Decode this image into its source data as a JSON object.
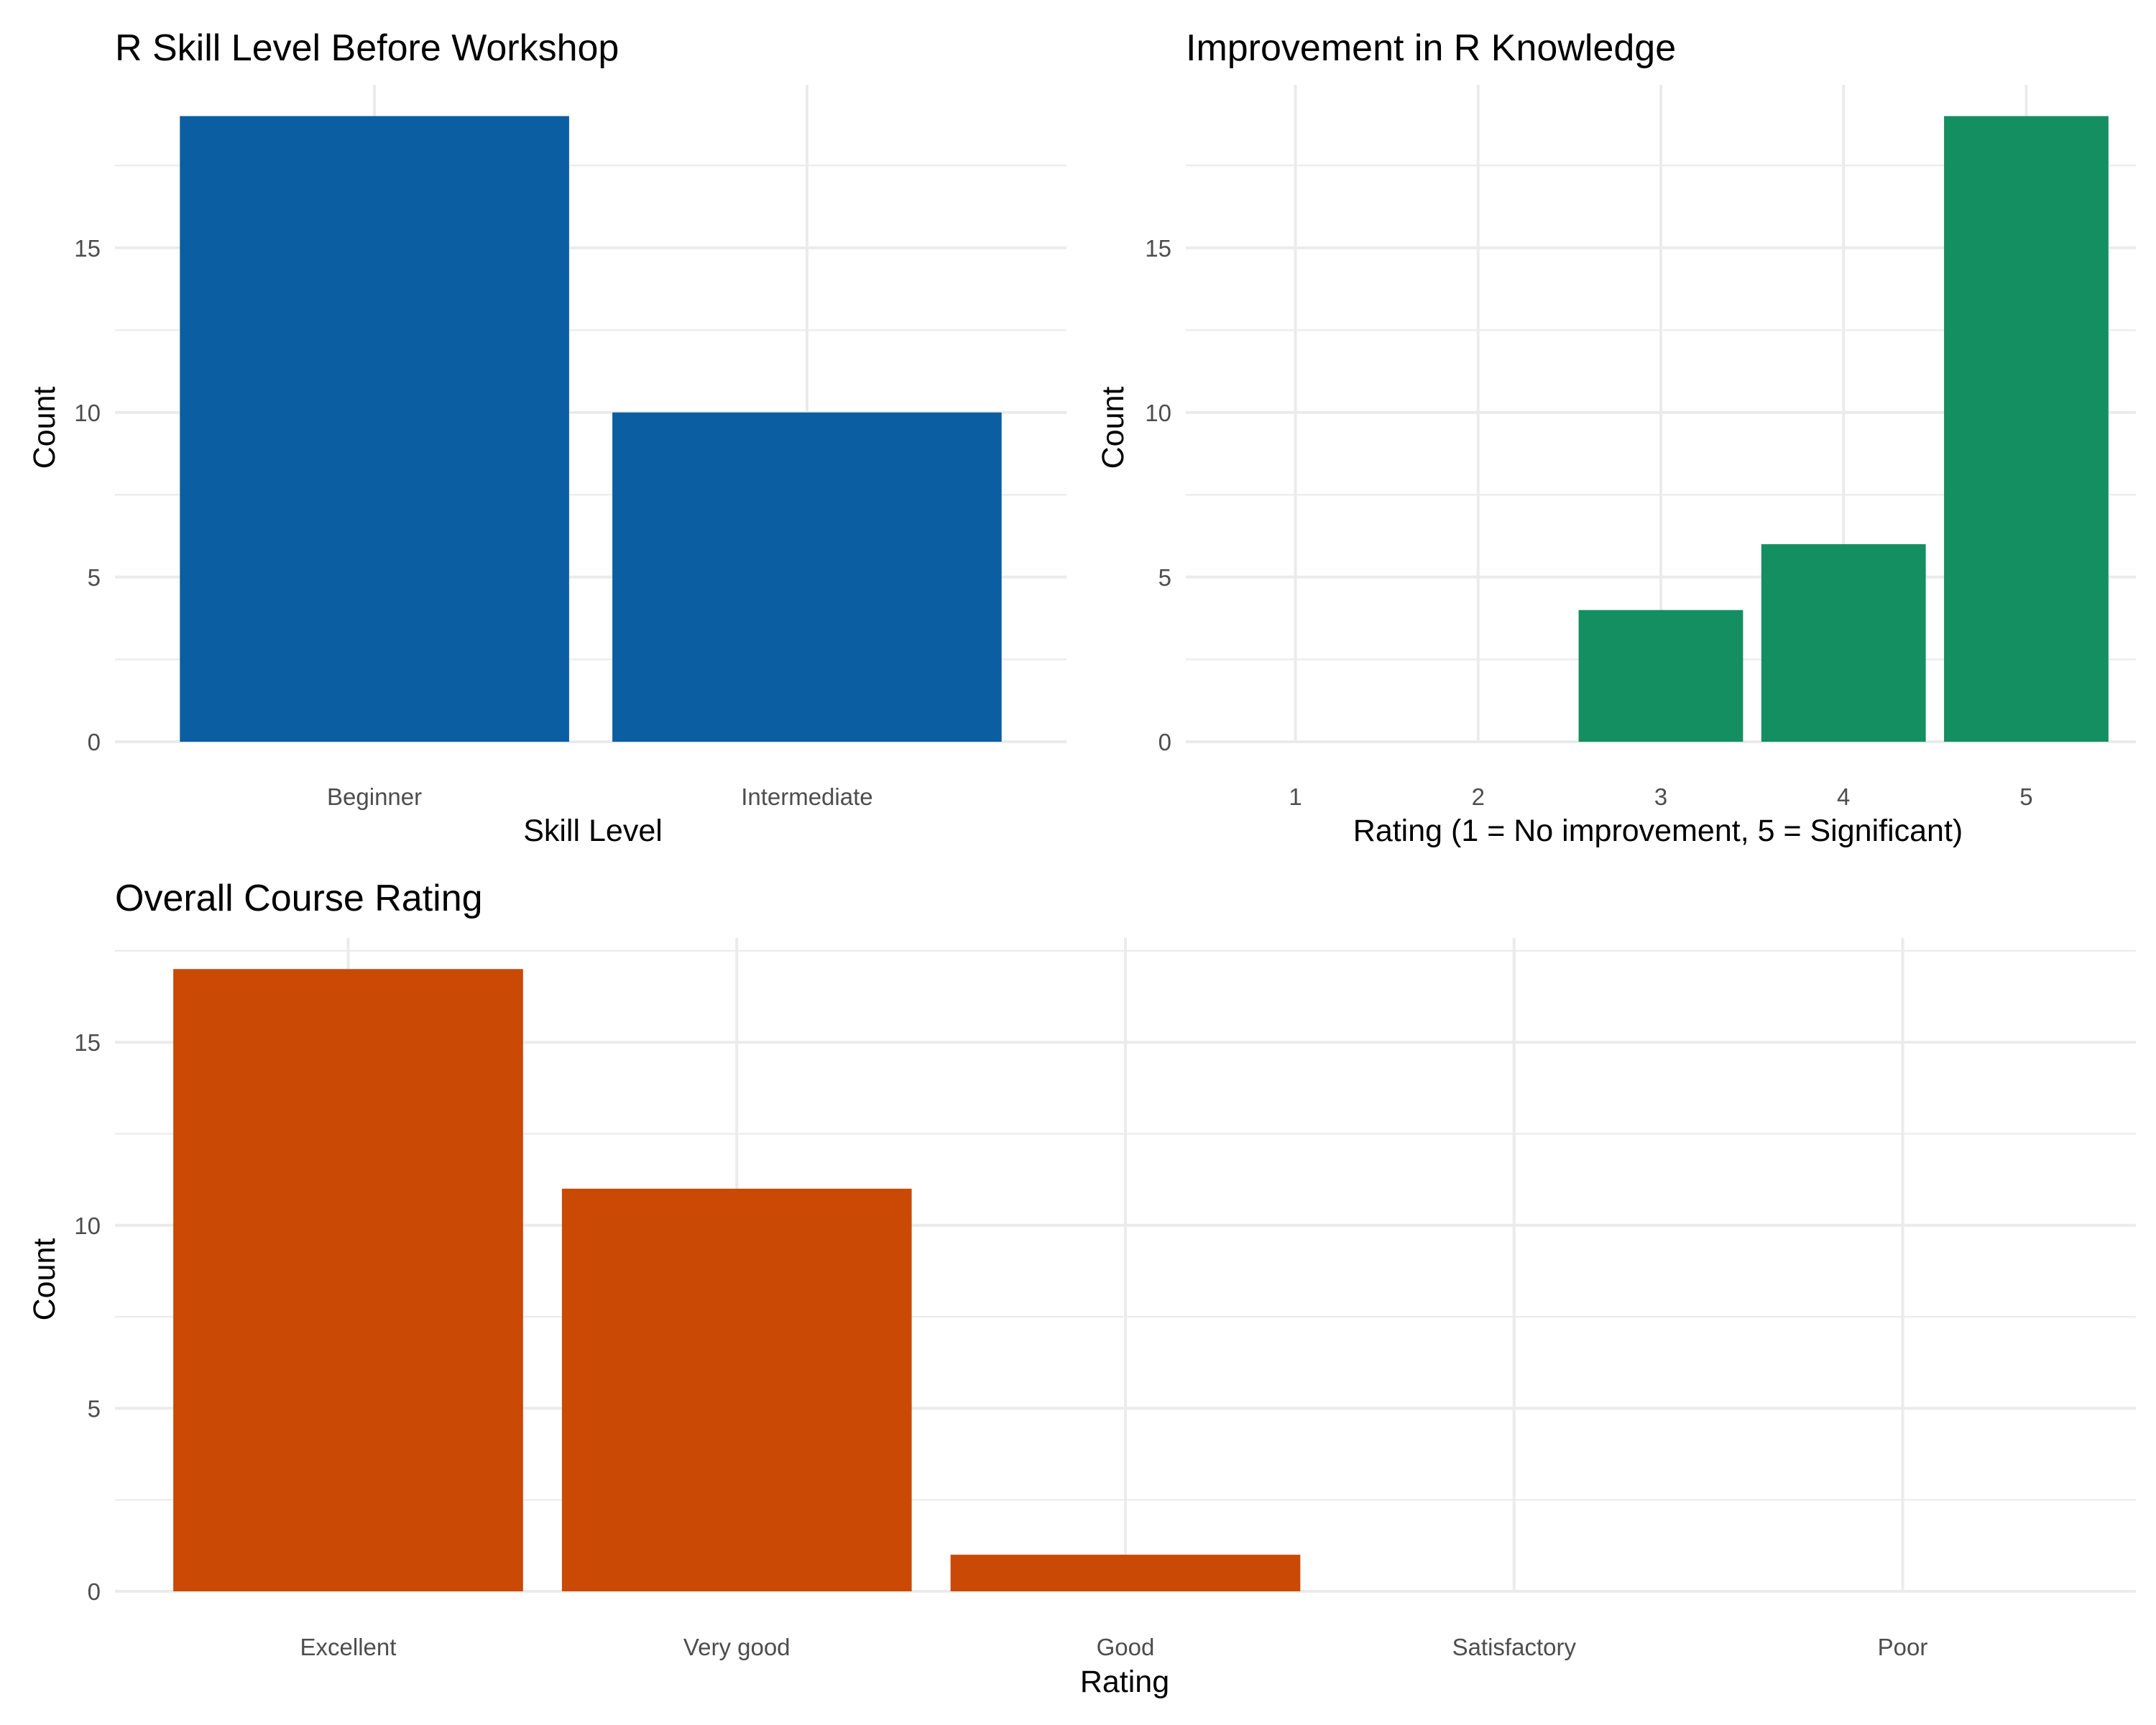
{
  "chart_data": [
    {
      "type": "bar",
      "title": "R Skill Level Before Workshop",
      "xlabel": "Skill Level",
      "ylabel": "Count",
      "categories": [
        "Beginner",
        "Intermediate"
      ],
      "values": [
        19,
        10
      ],
      "ylim": [
        0,
        19.95
      ],
      "yticks": [
        0,
        5,
        10,
        15
      ],
      "grid": true,
      "color": "#0b5ea2"
    },
    {
      "type": "bar",
      "title": "Improvement in R Knowledge",
      "xlabel": "Rating (1 = No improvement, 5 = Significant)",
      "ylabel": "Count",
      "categories": [
        "1",
        "2",
        "3",
        "4",
        "5"
      ],
      "values": [
        0,
        0,
        4,
        6,
        19
      ],
      "ylim": [
        0,
        19.95
      ],
      "yticks": [
        0,
        5,
        10,
        15
      ],
      "grid": true,
      "color": "#148f62"
    },
    {
      "type": "bar",
      "title": "Overall Course Rating",
      "xlabel": "Rating",
      "ylabel": "Count",
      "categories": [
        "Excellent",
        "Very good",
        "Good",
        "Satisfactory",
        "Poor"
      ],
      "values": [
        17,
        11,
        1,
        0,
        0
      ],
      "ylim": [
        0,
        17.85
      ],
      "yticks": [
        0,
        5,
        10,
        15
      ],
      "grid": true,
      "color": "#c94905"
    }
  ]
}
